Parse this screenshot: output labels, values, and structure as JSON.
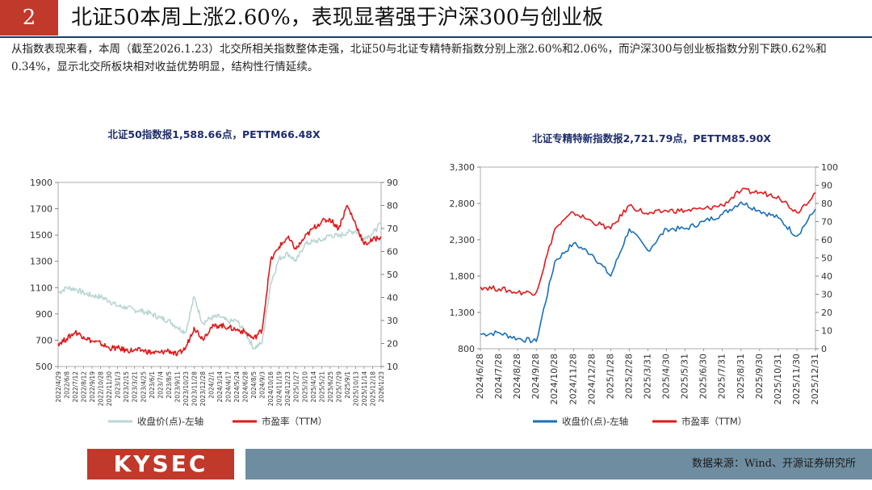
{
  "slide": {
    "number": "2",
    "title": "北证50本周上涨2.60%，表现显著强于沪深300与创业板",
    "summary": "从指数表现来看，本周（截至2026.1.23）北交所相关指数整体走强，北证50与北证专精特新指数分别上涨2.60%和2.06%，而沪深300与创业板指数分别下跌0.62%和0.34%，显示北交所板块相对收益优势明显，结构性行情延续。",
    "logo": "KYSEC",
    "source": "数据来源：Wind、开源证券研究所",
    "colors": {
      "accent": "#c0392b",
      "navy": "#1a3d6d",
      "source_bar": "#6e8da0"
    }
  },
  "chart_data": [
    {
      "type": "line",
      "title": "北证50指数报1,588.66点，PETTM66.48X",
      "x": [
        "2022/4/29",
        "2022/6/8",
        "2022/7/12",
        "2022/8/12",
        "2022/9/19",
        "2022/10/28",
        "2022/11/30",
        "2023/1/3",
        "2023/2/15",
        "2023/3/21",
        "2023/4/25",
        "2023/6/1",
        "2023/7/4",
        "2023/8/5",
        "2023/9/11",
        "2023/10/23",
        "2023/11/28",
        "2023/12/28",
        "2024/2/1",
        "2024/3/14",
        "2024/4/17",
        "2024/5/24",
        "2024/6/28",
        "2024/8/5",
        "2024/9/3",
        "2024/10/16",
        "2024/11/19",
        "2024/12/23",
        "2025/1/27",
        "2025/3/10",
        "2025/4/14",
        "2025/5/21",
        "2025/6/25",
        "2025/7/29",
        "2025/9/1",
        "2025/10/13",
        "2025/11/14",
        "2025/12/18",
        "2026/1/23"
      ],
      "ylim_left": [
        500,
        1900
      ],
      "yticks_left": [
        "500",
        "700",
        "900",
        "1100",
        "1300",
        "1500",
        "1700",
        "1900"
      ],
      "ylim_right": [
        10,
        90
      ],
      "yticks_right": [
        "10",
        "20",
        "30",
        "40",
        "50",
        "60",
        "70",
        "80",
        "90"
      ],
      "series": [
        {
          "name": "收盘价(点)-左轴",
          "axis": "left",
          "color": "#b9d6d3",
          "values": [
            1060,
            1100,
            1090,
            1060,
            1040,
            1030,
            1000,
            960,
            950,
            930,
            920,
            900,
            870,
            850,
            800,
            760,
            1030,
            830,
            870,
            880,
            840,
            850,
            760,
            640,
            680,
            1130,
            1320,
            1360,
            1300,
            1430,
            1450,
            1460,
            1500,
            1490,
            1520,
            1530,
            1480,
            1510,
            1589
          ]
        },
        {
          "name": "市盈率（TTM）",
          "axis": "right",
          "color": "#e0191a",
          "values": [
            20,
            22,
            25,
            23,
            21,
            20,
            18,
            18,
            17,
            17,
            17,
            16,
            16,
            17,
            15,
            18,
            27,
            22,
            27,
            28,
            27,
            26,
            25,
            22,
            26,
            56,
            62,
            66,
            61,
            66,
            70,
            73,
            74,
            70,
            80,
            72,
            63,
            65,
            66.48
          ]
        }
      ]
    },
    {
      "type": "line",
      "title": "北证专精特新指数报2,721.79点，PETTM85.90X",
      "x": [
        "2024/6/28",
        "2024/7/28",
        "2024/8/28",
        "2024/9/28",
        "2024/10/28",
        "2024/11/28",
        "2024/12/28",
        "2025/1/28",
        "2025/2/28",
        "2025/3/31",
        "2025/4/30",
        "2025/5/31",
        "2025/6/30",
        "2025/7/31",
        "2025/8/31",
        "2025/9/30",
        "2025/10/31",
        "2025/11/30",
        "2025/12/31"
      ],
      "ylim_left": [
        800,
        3300
      ],
      "yticks_left": [
        "800",
        "1,300",
        "1,800",
        "2,300",
        "2,800",
        "3,300"
      ],
      "ylim_right": [
        0,
        100
      ],
      "yticks_right": [
        "0",
        "10",
        "20",
        "30",
        "40",
        "50",
        "60",
        "70",
        "80",
        "90",
        "100"
      ],
      "series": [
        {
          "name": "收盘价(点)-左轴",
          "axis": "left",
          "color": "#1a6fb5",
          "values": [
            1000,
            1020,
            940,
            900,
            2000,
            2250,
            2100,
            1800,
            2450,
            2150,
            2450,
            2450,
            2550,
            2650,
            2820,
            2700,
            2600,
            2350,
            2722
          ]
        },
        {
          "name": "市盈率（TTM）",
          "axis": "right",
          "color": "#e0191a",
          "values": [
            34,
            33,
            31,
            31,
            66,
            75,
            70,
            66,
            79,
            74,
            76,
            76,
            77,
            79,
            87,
            86,
            84,
            75,
            85.9
          ]
        }
      ]
    }
  ]
}
